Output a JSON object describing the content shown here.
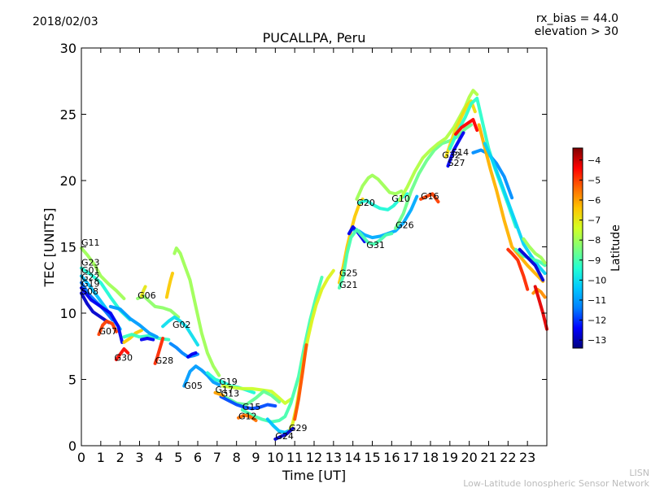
{
  "header": {
    "date": "2018/02/03",
    "rx_bias": "rx_bias = 44.0",
    "elevation": "elevation > 30"
  },
  "footer": {
    "org_short": "LISN",
    "org_long": "Low-Latitude Ionospheric Sensor Network"
  },
  "colors": {
    "axis": "#000000",
    "footer_text": "#bbbbbb",
    "colormap": [
      "#00007f",
      "#0000ff",
      "#007fff",
      "#00c8ff",
      "#23ffd3",
      "#7dff7a",
      "#d3ff23",
      "#ffc400",
      "#ff6800",
      "#ff0000",
      "#7f0000"
    ]
  },
  "colorbar": {
    "label": "Latitude",
    "min": -13.4,
    "max": -3.4,
    "ticks": [
      "−4",
      "−5",
      "−6",
      "−7",
      "−8",
      "−9",
      "−10",
      "−11",
      "−12",
      "−13"
    ],
    "tick_values": [
      -4,
      -5,
      -6,
      -7,
      -8,
      -9,
      -10,
      -11,
      -12,
      -13
    ]
  },
  "chart_data": {
    "type": "scatter",
    "title": "PUCALLPA, Peru",
    "xlabel": "Time [UT]",
    "ylabel": "TEC [UNITS]",
    "xlim": [
      0,
      24
    ],
    "ylim": [
      0,
      30
    ],
    "xticks": [
      "0",
      "1",
      "2",
      "3",
      "4",
      "5",
      "6",
      "7",
      "8",
      "9",
      "10",
      "11",
      "12",
      "13",
      "14",
      "15",
      "16",
      "17",
      "18",
      "19",
      "20",
      "21",
      "22",
      "23"
    ],
    "yticks": [
      "0",
      "5",
      "10",
      "15",
      "20",
      "25",
      "30"
    ],
    "grid": false,
    "satellite_labels": [
      {
        "name": "G11",
        "x": 0.0,
        "y": 15.1
      },
      {
        "name": "G23",
        "x": 0.0,
        "y": 13.6
      },
      {
        "name": "G01",
        "x": 0.0,
        "y": 13.0
      },
      {
        "name": "G22",
        "x": 0.0,
        "y": 12.5
      },
      {
        "name": "G19",
        "x": 0.0,
        "y": 12.0
      },
      {
        "name": "S08",
        "x": 0.0,
        "y": 11.4
      },
      {
        "name": "G07",
        "x": 0.9,
        "y": 8.4
      },
      {
        "name": "G30",
        "x": 1.7,
        "y": 6.4
      },
      {
        "name": "G06",
        "x": 2.9,
        "y": 11.1
      },
      {
        "name": "G28",
        "x": 3.8,
        "y": 6.2
      },
      {
        "name": "G02",
        "x": 4.7,
        "y": 8.9
      },
      {
        "name": "G05",
        "x": 5.3,
        "y": 4.3
      },
      {
        "name": "G19",
        "x": 7.1,
        "y": 4.6
      },
      {
        "name": "G17",
        "x": 6.9,
        "y": 4.0
      },
      {
        "name": "G13",
        "x": 7.2,
        "y": 3.7
      },
      {
        "name": "G15",
        "x": 8.3,
        "y": 2.7
      },
      {
        "name": "G12",
        "x": 8.1,
        "y": 2.0
      },
      {
        "name": "G29",
        "x": 10.7,
        "y": 1.1
      },
      {
        "name": "G24",
        "x": 10.0,
        "y": 0.5
      },
      {
        "name": "G25",
        "x": 13.3,
        "y": 12.8
      },
      {
        "name": "G21",
        "x": 13.3,
        "y": 11.9
      },
      {
        "name": "G20",
        "x": 14.2,
        "y": 18.1
      },
      {
        "name": "G10",
        "x": 16.0,
        "y": 18.4
      },
      {
        "name": "G31",
        "x": 14.7,
        "y": 14.9
      },
      {
        "name": "G26",
        "x": 16.2,
        "y": 16.4
      },
      {
        "name": "G16",
        "x": 17.5,
        "y": 18.6
      },
      {
        "name": "G32",
        "x": 18.6,
        "y": 21.7
      },
      {
        "name": "S14",
        "x": 19.1,
        "y": 21.9
      },
      {
        "name": "S27",
        "x": 18.9,
        "y": 21.1
      }
    ],
    "tracks": [
      {
        "lat": -8.0,
        "x": [
          0.0,
          0.3,
          0.7,
          1.0,
          1.4,
          1.8,
          2.2
        ],
        "y": [
          14.9,
          14.4,
          13.6,
          12.8,
          12.2,
          11.7,
          11.1
        ]
      },
      {
        "lat": -9.5,
        "x": [
          0.0,
          0.5,
          1.0,
          1.5,
          2.0,
          2.5
        ],
        "y": [
          13.4,
          12.9,
          12.3,
          11.2,
          10.2,
          9.5
        ]
      },
      {
        "lat": -10.5,
        "x": [
          0.0,
          0.4,
          0.8,
          1.2,
          1.6,
          2.0
        ],
        "y": [
          12.8,
          12.1,
          11.3,
          10.5,
          9.6,
          8.8
        ]
      },
      {
        "lat": -11.5,
        "x": [
          0.0,
          0.4,
          0.8,
          1.2,
          1.6
        ],
        "y": [
          12.3,
          11.4,
          10.8,
          10.2,
          9.5
        ]
      },
      {
        "lat": -12.5,
        "x": [
          0.0,
          0.5,
          1.0,
          1.5,
          1.9,
          2.1
        ],
        "y": [
          11.9,
          11.0,
          10.5,
          10.0,
          9.0,
          7.8
        ]
      },
      {
        "lat": -12.8,
        "x": [
          0.0,
          0.3,
          0.6,
          1.0,
          1.4
        ],
        "y": [
          11.5,
          10.7,
          10.1,
          9.7,
          9.3
        ]
      },
      {
        "lat": -5.0,
        "x": [
          0.9,
          1.1,
          1.3,
          1.6,
          1.8
        ],
        "y": [
          8.4,
          9.1,
          9.4,
          9.2,
          8.6
        ]
      },
      {
        "lat": -4.5,
        "x": [
          1.8,
          2.0,
          2.2,
          2.4
        ],
        "y": [
          6.5,
          6.9,
          7.3,
          7.0
        ]
      },
      {
        "lat": -8.2,
        "x": [
          2.9,
          3.2,
          3.5,
          3.8,
          4.2,
          4.6,
          5.0
        ],
        "y": [
          11.1,
          11.3,
          10.9,
          10.5,
          10.4,
          10.2,
          9.7
        ]
      },
      {
        "lat": -7.0,
        "x": [
          3.1,
          3.2,
          3.3
        ],
        "y": [
          11.3,
          11.7,
          12.0
        ]
      },
      {
        "lat": -6.5,
        "x": [
          2.2,
          2.5,
          2.8,
          3.1
        ],
        "y": [
          7.8,
          8.1,
          8.5,
          8.7
        ]
      },
      {
        "lat": -9.2,
        "x": [
          2.2,
          2.6,
          3.0,
          3.5,
          4.0,
          4.5
        ],
        "y": [
          8.2,
          8.4,
          8.2,
          8.3,
          8.1,
          8.0
        ]
      },
      {
        "lat": -11.0,
        "x": [
          1.5,
          2.0,
          2.5,
          3.0,
          3.5,
          3.9
        ],
        "y": [
          10.5,
          10.3,
          9.6,
          9.1,
          8.5,
          8.2
        ]
      },
      {
        "lat": -12.5,
        "x": [
          3.1,
          3.4,
          3.7
        ],
        "y": [
          8.0,
          8.1,
          8.0
        ]
      },
      {
        "lat": -4.8,
        "x": [
          3.8,
          3.9,
          4.0,
          4.1,
          4.2
        ],
        "y": [
          6.2,
          6.6,
          7.1,
          7.6,
          8.1
        ]
      },
      {
        "lat": -6.5,
        "x": [
          4.4,
          4.5,
          4.6,
          4.7
        ],
        "y": [
          11.2,
          11.9,
          12.5,
          13.0
        ]
      },
      {
        "lat": -8.0,
        "x": [
          4.8,
          4.9,
          5.1,
          5.3,
          5.6,
          5.9,
          6.2,
          6.5,
          6.8,
          7.1
        ],
        "y": [
          14.5,
          14.9,
          14.5,
          13.7,
          12.5,
          10.5,
          8.5,
          7.0,
          6.0,
          5.3
        ]
      },
      {
        "lat": -10.0,
        "x": [
          4.2,
          4.5,
          4.8,
          5.1,
          5.4,
          5.7,
          6.0
        ],
        "y": [
          9.0,
          9.4,
          9.7,
          9.4,
          9.0,
          8.3,
          7.6
        ]
      },
      {
        "lat": -11.3,
        "x": [
          4.6,
          4.9,
          5.2,
          5.5,
          5.8,
          6.0
        ],
        "y": [
          7.7,
          7.4,
          7.0,
          6.7,
          6.8,
          6.9
        ]
      },
      {
        "lat": -12.5,
        "x": [
          5.5,
          5.7,
          5.9
        ],
        "y": [
          6.7,
          6.9,
          7.0
        ]
      },
      {
        "lat": -11.0,
        "x": [
          5.3,
          5.6,
          5.9,
          6.2,
          6.5,
          6.8,
          7.1
        ],
        "y": [
          4.5,
          5.6,
          6.0,
          5.7,
          5.3,
          4.8,
          4.6
        ]
      },
      {
        "lat": -9.5,
        "x": [
          6.5,
          6.9,
          7.3,
          7.7,
          8.1,
          8.5,
          8.9
        ],
        "y": [
          5.5,
          5.0,
          4.8,
          4.5,
          4.4,
          4.2,
          4.0
        ]
      },
      {
        "lat": -7.5,
        "x": [
          7.3,
          7.8,
          8.3,
          8.8,
          9.3,
          9.8,
          10.2,
          10.5,
          10.8
        ],
        "y": [
          4.5,
          4.4,
          4.3,
          4.3,
          4.2,
          4.1,
          3.6,
          3.2,
          3.5
        ]
      },
      {
        "lat": -8.7,
        "x": [
          7.0,
          7.5,
          8.0,
          8.5,
          9.0,
          9.4,
          9.8,
          10.2
        ],
        "y": [
          4.0,
          3.6,
          3.2,
          3.1,
          3.6,
          4.1,
          3.8,
          3.3
        ]
      },
      {
        "lat": -11.8,
        "x": [
          7.2,
          7.6,
          8.0,
          8.4,
          8.8,
          9.2,
          9.6,
          10.0
        ],
        "y": [
          3.7,
          3.4,
          3.1,
          2.9,
          2.8,
          2.9,
          3.1,
          3.0
        ]
      },
      {
        "lat": -6.0,
        "x": [
          6.9,
          7.1,
          7.3
        ],
        "y": [
          4.0,
          3.9,
          3.8
        ]
      },
      {
        "lat": -9.0,
        "x": [
          8.3,
          8.8,
          9.3,
          9.8,
          10.2,
          10.5,
          10.8,
          11.2,
          11.5,
          11.8,
          12.1,
          12.4
        ],
        "y": [
          2.7,
          2.3,
          2.0,
          1.8,
          1.9,
          2.2,
          3.2,
          5.2,
          7.5,
          9.5,
          11.2,
          12.7
        ]
      },
      {
        "lat": -5.5,
        "x": [
          8.1,
          8.4,
          8.7,
          9.0
        ],
        "y": [
          2.1,
          2.3,
          2.2,
          1.9
        ]
      },
      {
        "lat": -10.5,
        "x": [
          9.6,
          9.9,
          10.2,
          10.5,
          10.8
        ],
        "y": [
          2.0,
          1.5,
          1.1,
          1.0,
          1.2
        ]
      },
      {
        "lat": -7.2,
        "x": [
          10.7,
          10.9,
          11.1,
          11.3,
          11.5,
          11.7,
          11.9,
          12.1,
          12.4,
          12.7,
          13.0
        ],
        "y": [
          1.0,
          1.7,
          3.0,
          4.8,
          6.8,
          8.2,
          9.5,
          10.6,
          11.8,
          12.6,
          13.2
        ]
      },
      {
        "lat": -12.8,
        "x": [
          10.0,
          10.3,
          10.6,
          10.9
        ],
        "y": [
          0.5,
          0.7,
          0.9,
          1.3
        ]
      },
      {
        "lat": -5.2,
        "x": [
          11.0,
          11.2,
          11.4,
          11.6
        ],
        "y": [
          2.0,
          3.5,
          5.5,
          7.6
        ]
      },
      {
        "lat": -6.5,
        "x": [
          13.3,
          13.5,
          13.7,
          13.9,
          14.1,
          14.3,
          14.5
        ],
        "y": [
          12.3,
          13.5,
          15.0,
          16.2,
          17.3,
          18.1,
          18.6
        ]
      },
      {
        "lat": -8.0,
        "x": [
          14.2,
          14.5,
          14.8,
          15.0,
          15.3,
          15.6,
          15.9,
          16.2,
          16.5
        ],
        "y": [
          18.6,
          19.6,
          20.2,
          20.4,
          20.1,
          19.6,
          19.1,
          19.0,
          19.2
        ]
      },
      {
        "lat": -9.5,
        "x": [
          14.3,
          14.7,
          15.0,
          15.4,
          15.8,
          16.1,
          16.4,
          16.8
        ],
        "y": [
          18.3,
          18.5,
          18.2,
          17.9,
          17.8,
          18.1,
          18.6,
          19.0
        ]
      },
      {
        "lat": -10.8,
        "x": [
          14.0,
          14.3,
          14.6,
          15.0,
          15.4,
          15.8,
          16.2,
          16.6,
          17.0,
          17.3
        ],
        "y": [
          16.3,
          16.2,
          15.9,
          15.7,
          15.8,
          16.0,
          16.2,
          16.8,
          17.8,
          18.8
        ]
      },
      {
        "lat": -12.5,
        "x": [
          13.8,
          14.0,
          14.2,
          14.4,
          14.6
        ],
        "y": [
          16.0,
          16.5,
          16.2,
          15.8,
          15.4
        ]
      },
      {
        "lat": -9.0,
        "x": [
          13.3,
          13.5,
          13.7,
          13.9,
          14.2,
          14.5,
          14.8,
          15.1,
          15.4,
          15.7,
          16.0
        ],
        "y": [
          11.9,
          12.8,
          14.5,
          15.7,
          16.3,
          15.8,
          15.3,
          15.2,
          15.5,
          15.9,
          16.0
        ]
      },
      {
        "lat": -8.6,
        "x": [
          16.2,
          16.6,
          17.0,
          17.4,
          17.8,
          18.2,
          18.6,
          19.0,
          19.4,
          19.8,
          20.1
        ],
        "y": [
          16.4,
          17.5,
          19.2,
          20.5,
          21.5,
          22.3,
          22.8,
          23.0,
          23.3,
          23.9,
          24.2
        ]
      },
      {
        "lat": -7.8,
        "x": [
          16.4,
          16.8,
          17.2,
          17.6,
          18.0,
          18.4,
          18.8,
          19.2,
          19.5,
          19.8,
          20.0,
          20.2,
          20.4
        ],
        "y": [
          18.5,
          19.5,
          20.7,
          21.7,
          22.3,
          22.8,
          23.2,
          24.0,
          24.8,
          25.6,
          26.3,
          26.8,
          26.5
        ]
      },
      {
        "lat": -5.0,
        "x": [
          17.5,
          17.8,
          18.1,
          18.4
        ],
        "y": [
          18.6,
          18.8,
          19.0,
          18.4
        ]
      },
      {
        "lat": -6.8,
        "x": [
          18.8,
          19.2,
          19.6,
          19.9,
          20.1,
          20.3
        ],
        "y": [
          21.8,
          23.5,
          24.8,
          25.7,
          26.0,
          25.2
        ]
      },
      {
        "lat": -9.3,
        "x": [
          19.0,
          19.4,
          19.8,
          20.1,
          20.4,
          20.7,
          21.0,
          21.3,
          21.6,
          22.0,
          22.4
        ],
        "y": [
          22.4,
          23.7,
          24.8,
          25.8,
          26.2,
          24.3,
          22.4,
          21.0,
          19.8,
          18.2,
          16.5
        ]
      },
      {
        "lat": -4.4,
        "x": [
          19.3,
          19.6,
          19.9,
          20.2,
          20.4
        ],
        "y": [
          23.5,
          24.0,
          24.3,
          24.6,
          23.8
        ]
      },
      {
        "lat": -12.5,
        "x": [
          18.9,
          19.2,
          19.5,
          19.7
        ],
        "y": [
          21.1,
          22.3,
          23.1,
          23.6
        ]
      },
      {
        "lat": -11.2,
        "x": [
          20.2,
          20.6,
          21.0,
          21.4,
          21.8,
          22.2
        ],
        "y": [
          22.1,
          22.3,
          22.0,
          21.3,
          20.3,
          18.7
        ]
      },
      {
        "lat": -6.2,
        "x": [
          20.5,
          20.8,
          21.1,
          21.4,
          21.8,
          22.2,
          22.6,
          23.0,
          23.4,
          23.8
        ],
        "y": [
          24.2,
          22.5,
          20.8,
          19.3,
          17.0,
          15.0,
          14.3,
          13.6,
          13.0,
          12.4
        ]
      },
      {
        "lat": -10.2,
        "x": [
          20.8,
          21.2,
          21.6,
          22.0,
          22.4,
          22.8,
          23.2,
          23.6,
          23.9
        ],
        "y": [
          22.8,
          21.5,
          20.0,
          18.4,
          16.8,
          15.2,
          14.3,
          13.5,
          13.0
        ]
      },
      {
        "lat": -9.0,
        "x": [
          22.4,
          22.8,
          23.2,
          23.6,
          23.9
        ],
        "y": [
          14.8,
          14.3,
          14.1,
          13.9,
          13.6
        ]
      },
      {
        "lat": -8.0,
        "x": [
          22.8,
          23.1,
          23.4,
          23.7,
          23.9
        ],
        "y": [
          15.6,
          15.0,
          14.5,
          14.2,
          13.8
        ]
      },
      {
        "lat": -12.7,
        "x": [
          22.6,
          23.0,
          23.4,
          23.8
        ],
        "y": [
          14.8,
          14.2,
          13.6,
          12.5
        ]
      },
      {
        "lat": -4.8,
        "x": [
          22.0,
          22.2,
          22.5,
          22.8,
          23.0
        ],
        "y": [
          14.8,
          14.5,
          14.0,
          12.8,
          11.8
        ]
      },
      {
        "lat": -5.8,
        "x": [
          23.3,
          23.5,
          23.7,
          23.9
        ],
        "y": [
          11.5,
          11.8,
          11.6,
          11.2
        ]
      },
      {
        "lat": -4.2,
        "x": [
          23.4,
          23.6,
          23.8,
          24.0
        ],
        "y": [
          12.0,
          11.0,
          10.0,
          8.8
        ]
      }
    ]
  }
}
